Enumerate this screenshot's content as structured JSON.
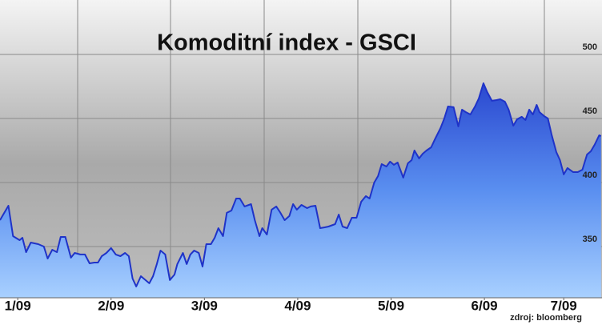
{
  "chart_data": {
    "type": "area",
    "title": "Komoditní index - GSCI",
    "source": "zdroj: bloomberg",
    "x": [
      0.81,
      0.9,
      0.95,
      1.02,
      1.05,
      1.09,
      1.14,
      1.22,
      1.28,
      1.32,
      1.37,
      1.42,
      1.46,
      1.51,
      1.57,
      1.61,
      1.67,
      1.72,
      1.77,
      1.82,
      1.86,
      1.9,
      1.95,
      2.0,
      2.05,
      2.1,
      2.15,
      2.19,
      2.23,
      2.27,
      2.32,
      2.36,
      2.41,
      2.45,
      2.49,
      2.53,
      2.58,
      2.63,
      2.68,
      2.71,
      2.77,
      2.81,
      2.85,
      2.89,
      2.94,
      2.98,
      3.02,
      3.07,
      3.11,
      3.15,
      3.2,
      3.24,
      3.29,
      3.34,
      3.38,
      3.43,
      3.5,
      3.54,
      3.59,
      3.62,
      3.67,
      3.72,
      3.77,
      3.81,
      3.86,
      3.91,
      3.95,
      3.99,
      4.04,
      4.1,
      4.14,
      4.19,
      4.24,
      4.29,
      4.33,
      4.4,
      4.44,
      4.48,
      4.53,
      4.58,
      4.63,
      4.68,
      4.73,
      4.77,
      4.82,
      4.86,
      4.9,
      4.95,
      4.99,
      5.03,
      5.07,
      5.13,
      5.18,
      5.22,
      5.25,
      5.3,
      5.34,
      5.38,
      5.43,
      5.47,
      5.53,
      5.57,
      5.61,
      5.67,
      5.72,
      5.76,
      5.8,
      5.85,
      5.9,
      5.94,
      5.99,
      6.03,
      6.08,
      6.13,
      6.17,
      6.22,
      6.26,
      6.31,
      6.35,
      6.4,
      6.44,
      6.48,
      6.52,
      6.56,
      6.59,
      6.64,
      6.68,
      6.72,
      6.77,
      6.81,
      6.85,
      6.89,
      6.95,
      7.0,
      7.05,
      7.1,
      7.14,
      7.18,
      7.23,
      7.25
    ],
    "values": [
      370.6,
      381.9,
      358.1,
      355,
      356.9,
      345.6,
      353.1,
      351.9,
      350,
      340.6,
      347.5,
      345.6,
      357.5,
      357.5,
      341.3,
      345,
      343.8,
      343.8,
      336.9,
      337.5,
      337.5,
      342.5,
      345,
      348.8,
      343.8,
      342.5,
      345,
      342.5,
      325,
      318.8,
      326.9,
      324.4,
      321.3,
      326.9,
      336.3,
      346.9,
      343.8,
      323.8,
      328.1,
      336.3,
      345,
      336.3,
      343.8,
      346.9,
      345,
      334.4,
      351.9,
      351.9,
      356.9,
      364.4,
      358.1,
      376.3,
      378.1,
      387.5,
      387.5,
      381.3,
      383.1,
      370.6,
      358.1,
      364.4,
      359.4,
      378.8,
      381.3,
      376.9,
      370.6,
      373.8,
      383.1,
      378.8,
      382.5,
      380,
      381.3,
      381.9,
      364.4,
      365,
      365.6,
      367.5,
      375,
      365.6,
      364.4,
      372.5,
      372.5,
      385,
      389.4,
      387.5,
      400,
      405,
      414.4,
      412.5,
      416.3,
      413.8,
      415.6,
      403.8,
      415,
      417.5,
      425,
      418.8,
      422.5,
      425,
      427.5,
      433.8,
      442.5,
      450,
      459.4,
      458.8,
      443.8,
      456.9,
      455,
      453.1,
      459.4,
      465.6,
      477.5,
      470.6,
      463.8,
      464.4,
      465,
      463.1,
      456.9,
      444.4,
      449.4,
      451.3,
      448.8,
      456.9,
      453.1,
      460.6,
      455,
      451.9,
      450,
      437.5,
      423.8,
      417.5,
      406.3,
      411.3,
      408.1,
      408.1,
      410,
      421.9,
      424.4,
      429.4,
      436.9,
      436.3
    ],
    "color": "#1f33c8",
    "xlim": [
      0.81,
      7.26
    ],
    "xticks": [
      {
        "value": 1,
        "label": "1/09"
      },
      {
        "value": 2,
        "label": "2/09"
      },
      {
        "value": 3,
        "label": "3/09"
      },
      {
        "value": 4,
        "label": "4/09"
      },
      {
        "value": 5,
        "label": "5/09"
      },
      {
        "value": 6,
        "label": "6/09"
      },
      {
        "value": 6.85,
        "label": "7/09"
      }
    ],
    "ylim": [
      310,
      542.5
    ],
    "yticks": [
      350,
      400,
      450,
      500
    ],
    "grid": true
  }
}
